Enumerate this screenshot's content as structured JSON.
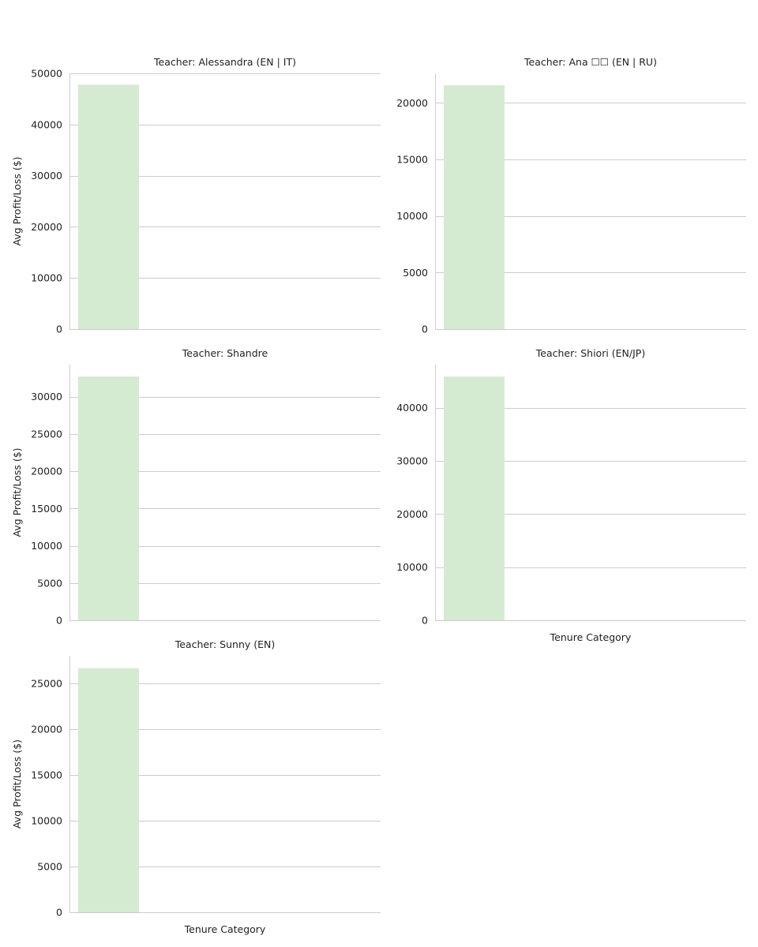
{
  "colors": {
    "bar": "#d5ebd1",
    "grid": "#cccccc",
    "axis": "#cccccc",
    "text": "#222222"
  },
  "chart_data": [
    {
      "type": "bar",
      "title": "Teacher: Alessandra (EN | IT)",
      "categories": [
        ""
      ],
      "values": [
        47800
      ],
      "ylim": [
        0,
        50000
      ],
      "yticks": [
        0,
        10000,
        20000,
        30000,
        40000,
        50000
      ],
      "ylabel": "Avg Profit/Loss ($)",
      "xlabel": "",
      "grid": true
    },
    {
      "type": "bar",
      "title": "Teacher: Ana ☐☐ (EN | RU)",
      "categories": [
        ""
      ],
      "values": [
        21550
      ],
      "ylim": [
        0,
        22600
      ],
      "yticks": [
        0,
        5000,
        10000,
        15000,
        20000
      ],
      "ylabel": "",
      "xlabel": "",
      "grid": true
    },
    {
      "type": "bar",
      "title": "Teacher: Shandre",
      "categories": [
        ""
      ],
      "values": [
        32700
      ],
      "ylim": [
        0,
        34300
      ],
      "yticks": [
        0,
        5000,
        10000,
        15000,
        20000,
        25000,
        30000
      ],
      "ylabel": "Avg Profit/Loss ($)",
      "xlabel": "",
      "grid": true
    },
    {
      "type": "bar",
      "title": "Teacher: Shiori (EN/JP)",
      "categories": [
        ""
      ],
      "values": [
        45850
      ],
      "ylim": [
        0,
        48100
      ],
      "yticks": [
        0,
        10000,
        20000,
        30000,
        40000
      ],
      "ylabel": "",
      "xlabel": "Tenure Category",
      "grid": true
    },
    {
      "type": "bar",
      "title": "Teacher: Sunny (EN)",
      "categories": [
        ""
      ],
      "values": [
        26650
      ],
      "ylim": [
        0,
        28000
      ],
      "yticks": [
        0,
        5000,
        10000,
        15000,
        20000,
        25000
      ],
      "ylabel": "Avg Profit/Loss ($)",
      "xlabel": "Tenure Category",
      "grid": true
    }
  ]
}
